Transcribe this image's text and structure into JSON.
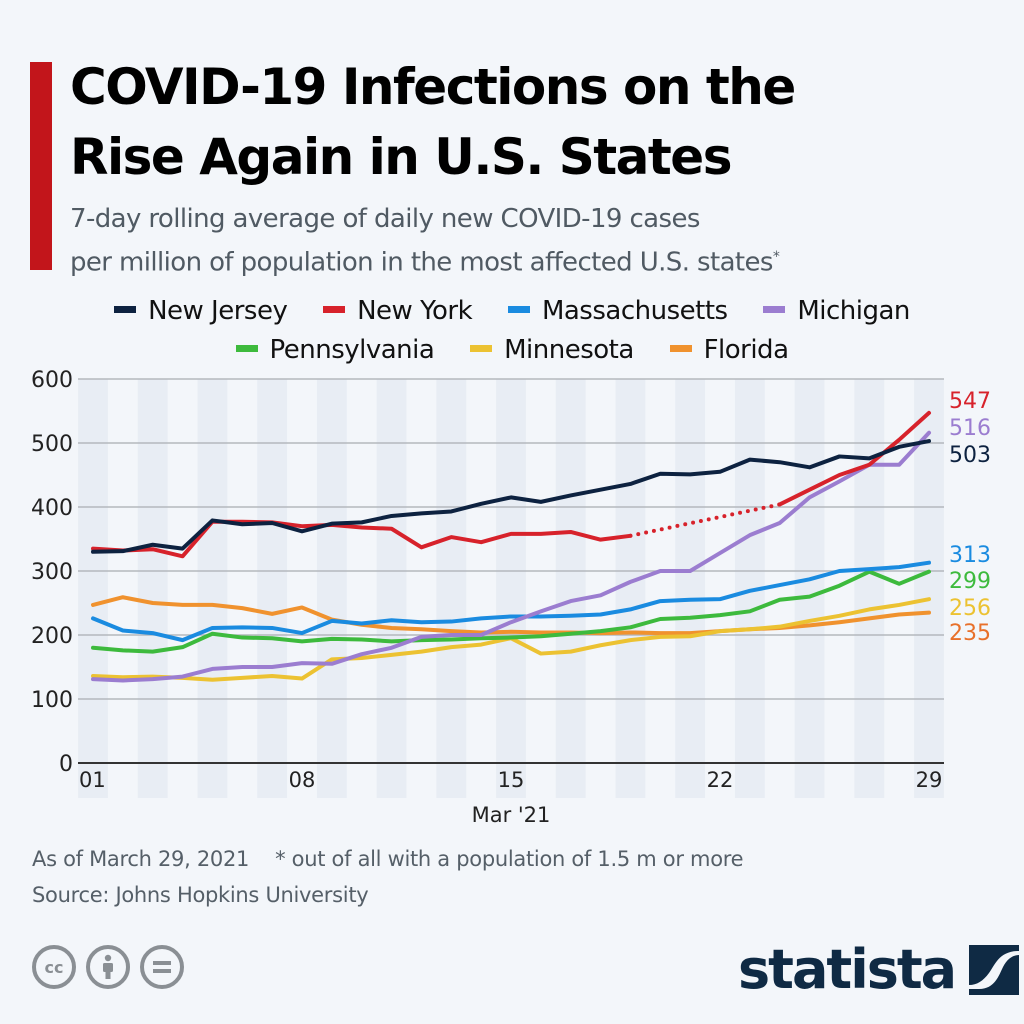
{
  "title_lines": [
    "COVID-19 Infections on the",
    "Rise Again in U.S. States"
  ],
  "subtitle_lines": [
    "7-day rolling average of daily new COVID-19 cases",
    "per million of population in the most affected U.S. states"
  ],
  "subtitle_footnote_mark": "*",
  "colors": {
    "accent": "#c2151b",
    "background": "#f3f6fa",
    "band": "#e8edf4"
  },
  "legend": [
    {
      "label": "New Jersey",
      "color": "#0d2240"
    },
    {
      "label": "New York",
      "color": "#d7222b"
    },
    {
      "label": "Massachusetts",
      "color": "#1a8be0"
    },
    {
      "label": "Michigan",
      "color": "#9b7dd0"
    },
    {
      "label": "Pennsylvania",
      "color": "#3dba3d"
    },
    {
      "label": "Minnesota",
      "color": "#ecc232"
    },
    {
      "label": "Florida",
      "color": "#f0922e"
    }
  ],
  "chart_data": {
    "type": "line",
    "title": "COVID-19 Infections on the Rise Again in U.S. States",
    "xlabel": "Mar '21",
    "ylabel": "",
    "x": [
      1,
      2,
      3,
      4,
      5,
      6,
      7,
      8,
      9,
      10,
      11,
      12,
      13,
      14,
      15,
      16,
      17,
      18,
      19,
      20,
      21,
      22,
      23,
      24,
      25,
      26,
      27,
      28,
      29
    ],
    "xticks": [
      {
        "value": 1,
        "label": "01"
      },
      {
        "value": 8,
        "label": "08"
      },
      {
        "value": 15,
        "label": "15"
      },
      {
        "value": 22,
        "label": "22"
      },
      {
        "value": 29,
        "label": "29"
      }
    ],
    "yticks": [
      0,
      100,
      200,
      300,
      400,
      500,
      600
    ],
    "ylim": [
      0,
      600
    ],
    "xlim": [
      1,
      29
    ],
    "grid": true,
    "legend_position": "top",
    "series": [
      {
        "name": "New Jersey",
        "color": "#0d2240",
        "end_label": "503",
        "values": [
          330,
          331,
          341,
          335,
          379,
          373,
          375,
          362,
          374,
          376,
          386,
          390,
          393,
          405,
          415,
          408,
          418,
          427,
          436,
          452,
          451,
          455,
          474,
          470,
          462,
          479,
          476,
          494,
          503
        ]
      },
      {
        "name": "New York",
        "color": "#d7222b",
        "end_label": "547",
        "values": [
          335,
          332,
          334,
          323,
          377,
          377,
          376,
          370,
          372,
          368,
          366,
          337,
          353,
          345,
          358,
          358,
          361,
          349,
          355,
          null,
          null,
          null,
          null,
          404,
          427,
          450,
          466,
          505,
          547
        ],
        "dotted_gap": {
          "from": 19,
          "to": 24
        }
      },
      {
        "name": "Massachusetts",
        "color": "#1a8be0",
        "end_label": "313",
        "values": [
          226,
          207,
          203,
          192,
          211,
          212,
          211,
          203,
          222,
          218,
          223,
          220,
          221,
          226,
          229,
          229,
          230,
          232,
          240,
          253,
          255,
          256,
          269,
          278,
          287,
          300,
          303,
          306,
          313
        ]
      },
      {
        "name": "Michigan",
        "color": "#9b7dd0",
        "end_label": "516",
        "values": [
          131,
          129,
          131,
          135,
          147,
          150,
          150,
          156,
          155,
          170,
          180,
          197,
          200,
          200,
          220,
          237,
          253,
          262,
          283,
          300,
          300,
          328,
          356,
          375,
          415,
          440,
          466,
          466,
          516
        ]
      },
      {
        "name": "Pennsylvania",
        "color": "#3dba3d",
        "end_label": "299",
        "values": [
          180,
          176,
          174,
          181,
          202,
          196,
          195,
          190,
          194,
          193,
          190,
          192,
          193,
          195,
          196,
          198,
          202,
          206,
          212,
          225,
          227,
          231,
          237,
          255,
          260,
          277,
          299,
          280,
          299
        ]
      },
      {
        "name": "Minnesota",
        "color": "#ecc232",
        "end_label": "256",
        "values": [
          136,
          134,
          135,
          133,
          130,
          133,
          136,
          132,
          162,
          164,
          169,
          174,
          181,
          185,
          195,
          171,
          174,
          184,
          192,
          197,
          198,
          206,
          209,
          213,
          222,
          230,
          240,
          247,
          256
        ]
      },
      {
        "name": "Florida",
        "color": "#f0922e",
        "end_label": "235",
        "values": [
          247,
          259,
          250,
          247,
          247,
          242,
          233,
          243,
          224,
          216,
          211,
          209,
          206,
          204,
          205,
          204,
          204,
          203,
          204,
          203,
          203,
          206,
          209,
          211,
          215,
          220,
          226,
          232,
          235
        ]
      }
    ],
    "end_labels": [
      {
        "text": "547",
        "color": "#d7222b",
        "value": 547
      },
      {
        "text": "516",
        "color": "#9b7dd0",
        "value": 516
      },
      {
        "text": "503",
        "color": "#0d2240",
        "value": 503
      },
      {
        "text": "313",
        "color": "#1a8be0",
        "value": 313
      },
      {
        "text": "299",
        "color": "#3dba3d",
        "value": 299
      },
      {
        "text": "256",
        "color": "#ecc232",
        "value": 256
      },
      {
        "text": "235",
        "color": "#e8702a",
        "value": 235
      }
    ]
  },
  "footer": {
    "date_note": "As of March 29, 2021",
    "footnote": "* out of all with a population of 1.5 m or more",
    "source": "Source: Johns Hopkins University"
  },
  "license_icons": [
    "cc-icon",
    "attribution-icon",
    "no-derivatives-icon"
  ],
  "license_glyphs": [
    "cc",
    "i",
    "="
  ],
  "brand": {
    "name": "statista"
  }
}
